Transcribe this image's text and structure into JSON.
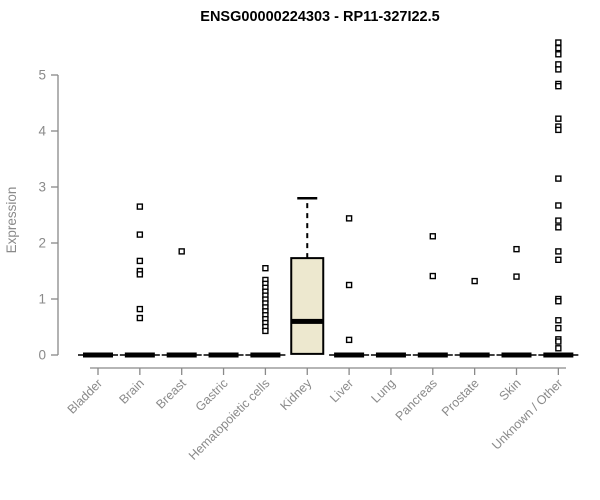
{
  "chart_data": {
    "type": "boxplot",
    "title": "ENSG00000224303 - RP11-327I22.5",
    "ylabel": "Expression",
    "xlabel": "",
    "ylim": [
      0,
      5.7
    ],
    "yticks": [
      0,
      1,
      2,
      3,
      4,
      5
    ],
    "grid": false,
    "legend": null,
    "categories": [
      "Bladder",
      "Brain",
      "Breast",
      "Gastric",
      "Hematopoietic cells",
      "Kidney",
      "Liver",
      "Lung",
      "Pancreas",
      "Prostate",
      "Skin",
      "Unknown / Other"
    ],
    "boxes": [
      {
        "category": "Bladder",
        "q1": 0,
        "median": 0,
        "q3": 0,
        "whisker_low": 0,
        "whisker_high": 0
      },
      {
        "category": "Brain",
        "q1": 0,
        "median": 0,
        "q3": 0,
        "whisker_low": 0,
        "whisker_high": 0
      },
      {
        "category": "Breast",
        "q1": 0,
        "median": 0,
        "q3": 0,
        "whisker_low": 0,
        "whisker_high": 0
      },
      {
        "category": "Gastric",
        "q1": 0,
        "median": 0,
        "q3": 0,
        "whisker_low": 0,
        "whisker_high": 0
      },
      {
        "category": "Hematopoietic cells",
        "q1": 0,
        "median": 0,
        "q3": 0,
        "whisker_low": 0,
        "whisker_high": 0
      },
      {
        "category": "Kidney",
        "q1": 0.02,
        "median": 0.6,
        "q3": 1.73,
        "whisker_low": 0.02,
        "whisker_high": 2.8
      },
      {
        "category": "Liver",
        "q1": 0,
        "median": 0,
        "q3": 0,
        "whisker_low": 0,
        "whisker_high": 0
      },
      {
        "category": "Lung",
        "q1": 0,
        "median": 0,
        "q3": 0,
        "whisker_low": 0,
        "whisker_high": 0
      },
      {
        "category": "Pancreas",
        "q1": 0,
        "median": 0,
        "q3": 0,
        "whisker_low": 0,
        "whisker_high": 0
      },
      {
        "category": "Prostate",
        "q1": 0,
        "median": 0,
        "q3": 0,
        "whisker_low": 0,
        "whisker_high": 0
      },
      {
        "category": "Skin",
        "q1": 0,
        "median": 0,
        "q3": 0,
        "whisker_low": 0,
        "whisker_high": 0
      },
      {
        "category": "Unknown / Other",
        "q1": 0,
        "median": 0,
        "q3": 0,
        "whisker_low": 0,
        "whisker_high": 0
      }
    ],
    "points": [
      [],
      [
        2.65,
        2.15,
        1.68,
        1.5,
        1.44,
        0.82,
        0.66
      ],
      [
        1.85
      ],
      [],
      [
        1.55,
        1.34,
        1.27,
        1.2,
        1.13,
        1.06,
        0.99,
        0.92,
        0.85,
        0.78,
        0.71,
        0.64,
        0.57,
        0.5,
        0.43
      ],
      [],
      [
        2.44,
        1.25,
        0.27
      ],
      [],
      [
        2.12,
        1.41
      ],
      [
        1.32
      ],
      [
        1.89,
        1.4
      ],
      [
        5.58,
        5.48,
        5.37,
        5.19,
        5.1,
        4.84,
        4.8,
        4.22,
        4.08,
        4.02,
        3.15,
        2.67,
        2.4,
        2.28,
        1.85,
        1.7,
        1.0,
        0.96,
        0.62,
        0.48,
        0.28,
        0.24,
        0.12
      ]
    ],
    "colors": {
      "box_fill": "#EDE8CF",
      "box_stroke": "#000000",
      "median": "#000000",
      "axis": "#898989",
      "tick_label": "#8A8A8A",
      "title": "#000000",
      "point_stroke": "#000000",
      "point_fill": "#FFFFFF",
      "background": "#FFFFFF"
    }
  }
}
